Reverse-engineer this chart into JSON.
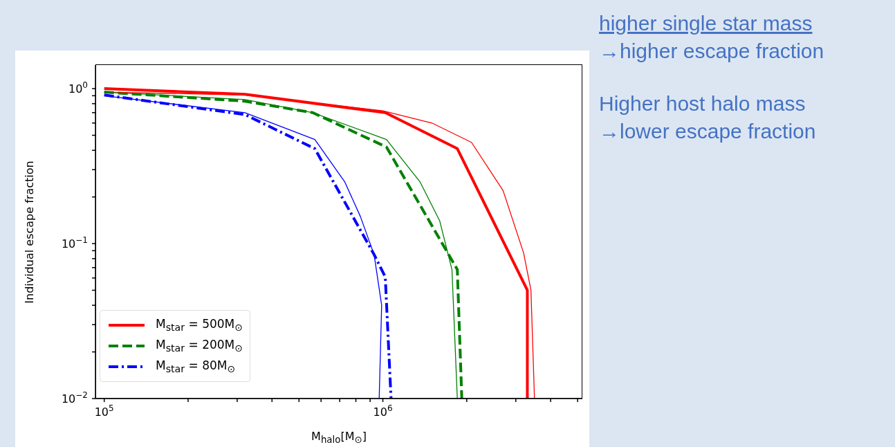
{
  "chart_data": {
    "type": "line",
    "xlabel": "M$_{halo}$[M$_{⊙}$]",
    "ylabel": "Individual escape fraction",
    "log": "xy",
    "legend": "bottom left",
    "marker": "none",
    "xlim": [
      93000,
      5200000
    ],
    "ylim": [
      0.01,
      1.42
    ],
    "xticks": [
      {
        "value": 100000,
        "label": "10$^{5}$"
      },
      {
        "value": 200000,
        "label": null
      },
      {
        "value": 300000,
        "label": null
      },
      {
        "value": 400000,
        "label": null
      },
      {
        "value": 500000,
        "label": null
      },
      {
        "value": 600000,
        "label": null
      },
      {
        "value": 700000,
        "label": null
      },
      {
        "value": 800000,
        "label": null
      },
      {
        "value": 900000,
        "label": null
      },
      {
        "value": 1000000,
        "label": "10$^{6}$"
      },
      {
        "value": 2000000,
        "label": null
      },
      {
        "value": 3000000,
        "label": null
      },
      {
        "value": 4000000,
        "label": null
      },
      {
        "value": 5000000,
        "label": null
      }
    ],
    "yticks": [
      {
        "value": 0.01,
        "label": "10$^{−2}$"
      },
      {
        "value": 0.02,
        "label": null
      },
      {
        "value": 0.03,
        "label": null
      },
      {
        "value": 0.04,
        "label": null
      },
      {
        "value": 0.05,
        "label": null
      },
      {
        "value": 0.06,
        "label": null
      },
      {
        "value": 0.07,
        "label": null
      },
      {
        "value": 0.08,
        "label": null
      },
      {
        "value": 0.09,
        "label": null
      },
      {
        "value": 0.1,
        "label": "10$^{−1}$"
      },
      {
        "value": 0.2,
        "label": null
      },
      {
        "value": 0.3,
        "label": null
      },
      {
        "value": 0.4,
        "label": null
      },
      {
        "value": 0.5,
        "label": null
      },
      {
        "value": 0.6,
        "label": null
      },
      {
        "value": 0.7,
        "label": null
      },
      {
        "value": 0.8,
        "label": null
      },
      {
        "value": 0.9,
        "label": null
      },
      {
        "value": 1,
        "label": "10$^{0}$"
      }
    ],
    "series": [
      {
        "name": "M$_{star}$ = 500M$_{⊙}$",
        "color": "#ff0000",
        "line_style": "solid",
        "x": [
          100000,
          320000,
          1020000,
          1850000,
          3300000,
          3300000
        ],
        "values": [
          1.0,
          0.92,
          0.7,
          0.41,
          0.05,
          0.01
        ]
      },
      {
        "name": "M$_{star}$ = 200M$_{⊙}$",
        "color": "#008000",
        "line_style": "dashed",
        "x": [
          100000,
          320000,
          560000,
          1030000,
          1850000,
          1920000
        ],
        "values": [
          0.95,
          0.83,
          0.7,
          0.42,
          0.068,
          0.01
        ]
      },
      {
        "name": "M$_{star}$ = 80M$_{⊙}$",
        "color": "#0000ff",
        "line_style": "dashdot",
        "x": [
          100000,
          320000,
          570000,
          930000,
          1020000,
          1070000
        ],
        "values": [
          0.91,
          0.68,
          0.41,
          0.085,
          0.061,
          0.01
        ]
      },
      {
        "color": "#ff0000",
        "line_style": "solid",
        "x": [
          100000,
          320000,
          1000000,
          1500000,
          2080000,
          2700000,
          3200000,
          3400000,
          3500000
        ],
        "values": [
          0.95,
          0.91,
          0.72,
          0.6,
          0.45,
          0.22,
          0.087,
          0.05,
          0.01
        ]
      },
      {
        "color": "#008000",
        "line_style": "solid",
        "x": [
          100000,
          320000,
          560000,
          1030000,
          1360000,
          1600000,
          1770000,
          1850000
        ],
        "values": [
          0.95,
          0.85,
          0.7,
          0.47,
          0.25,
          0.14,
          0.068,
          0.01
        ]
      },
      {
        "color": "#0000ff",
        "line_style": "solid",
        "x": [
          100000,
          320000,
          570000,
          730000,
          830000,
          930000,
          990000,
          970000
        ],
        "values": [
          0.9,
          0.7,
          0.47,
          0.25,
          0.15,
          0.085,
          0.04,
          0.01
        ]
      }
    ],
    "annotations": [
      "higher single star mass",
      "→higher escape fraction",
      "Higher host halo mass",
      "→lower escape fraction"
    ]
  }
}
